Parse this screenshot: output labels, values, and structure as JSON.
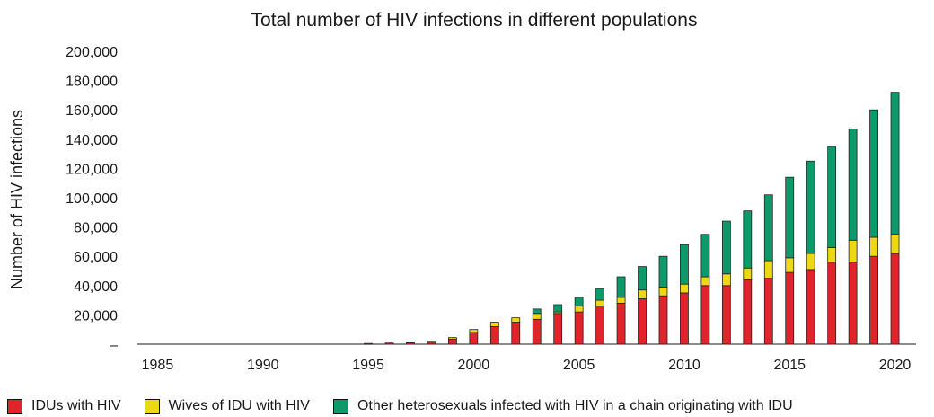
{
  "chart_data": {
    "type": "bar",
    "stacked": true,
    "title": "Total number of HIV infections in different populations",
    "xlabel": "",
    "ylabel": "Number of HIV infections",
    "x": [
      1995,
      1996,
      1997,
      1998,
      1999,
      2000,
      2001,
      2002,
      2003,
      2004,
      2005,
      2006,
      2007,
      2008,
      2009,
      2010,
      2011,
      2012,
      2013,
      2014,
      2015,
      2016,
      2017,
      2018,
      2019,
      2020
    ],
    "xlim": [
      1984,
      2021
    ],
    "xticks": [
      1985,
      1990,
      1995,
      2000,
      2005,
      2010,
      2015,
      2020
    ],
    "xtick_labels": [
      "1985",
      "1990",
      "1995",
      "2000",
      "2005",
      "2010",
      "2015",
      "2020"
    ],
    "ylim": [
      0,
      200000
    ],
    "yticks": [
      0,
      20000,
      40000,
      60000,
      80000,
      100000,
      120000,
      140000,
      160000,
      180000,
      200000
    ],
    "ytick_labels": [
      "–",
      "20,000",
      "40,000",
      "60,000",
      "80,000",
      "100,000",
      "120,000",
      "140,000",
      "160,000",
      "180,000",
      "200,000"
    ],
    "series": [
      {
        "name": "IDUs with HIV",
        "color": "#e1232b",
        "values": [
          500,
          800,
          1000,
          1800,
          3500,
          8000,
          12000,
          15000,
          17000,
          21000,
          22000,
          26000,
          28000,
          31000,
          33000,
          35000,
          40000,
          40000,
          44000,
          45000,
          49000,
          51000,
          56000,
          56000,
          60000,
          62000
        ]
      },
      {
        "name": "Wives of IDU with HIV",
        "color": "#ecd815",
        "values": [
          0,
          0,
          0,
          200,
          1000,
          2000,
          3000,
          3000,
          4000,
          1000,
          4000,
          4000,
          4000,
          6000,
          6000,
          6000,
          6000,
          8000,
          8000,
          12000,
          10000,
          11000,
          10000,
          15000,
          13000,
          13000
        ]
      },
      {
        "name": "Other heterosexuals infected with HIV in a chain originating with IDU",
        "color": "#0d9a6a",
        "values": [
          0,
          0,
          0,
          0,
          0,
          0,
          0,
          0,
          3000,
          5000,
          6000,
          8000,
          14000,
          16000,
          21000,
          27000,
          29000,
          36000,
          39000,
          45000,
          55000,
          63000,
          69000,
          76000,
          87000,
          97000
        ]
      }
    ],
    "grid": false,
    "legend_position": "bottom"
  }
}
